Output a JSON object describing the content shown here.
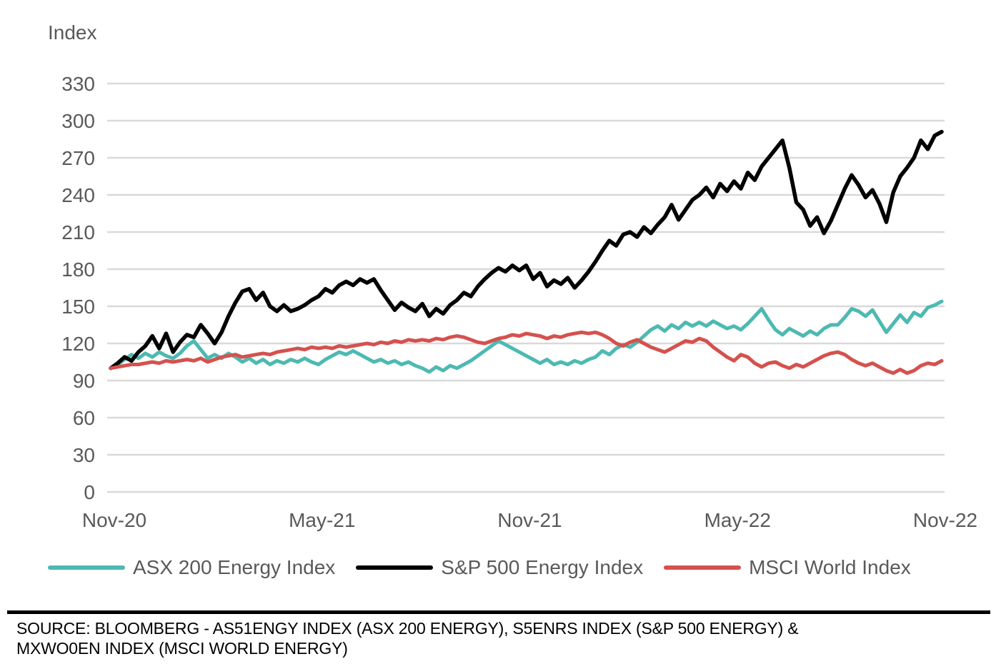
{
  "chart_data": {
    "type": "line",
    "axis_title": "Index",
    "y_axis": {
      "min": 0,
      "max": 330,
      "step": 30,
      "ticks": [
        0,
        30,
        60,
        90,
        120,
        150,
        180,
        210,
        240,
        270,
        300,
        330
      ]
    },
    "x_axis": {
      "labels": [
        "Nov-20",
        "May-21",
        "Nov-21",
        "May-22",
        "Nov-22"
      ],
      "label_positions_months": [
        0,
        6,
        12,
        18,
        24
      ],
      "range_months": [
        0,
        24
      ],
      "note": "series sampled every 0.2 month from Nov-20 to Nov-22"
    },
    "grid_color": "#D9D9D9",
    "axis_text_color": "#595959",
    "legend_position": "bottom",
    "series": [
      {
        "name": "ASX 200 Energy Index",
        "color": "#4DB9B2",
        "values": [
          100,
          103,
          107,
          111,
          108,
          112,
          109,
          113,
          110,
          108,
          112,
          118,
          122,
          115,
          108,
          111,
          108,
          112,
          109,
          105,
          108,
          104,
          107,
          103,
          106,
          104,
          107,
          105,
          108,
          105,
          103,
          107,
          110,
          113,
          111,
          114,
          111,
          108,
          105,
          107,
          104,
          106,
          103,
          105,
          102,
          100,
          97,
          101,
          98,
          102,
          100,
          103,
          106,
          110,
          114,
          118,
          122,
          119,
          116,
          113,
          110,
          107,
          104,
          107,
          103,
          105,
          103,
          106,
          104,
          107,
          109,
          114,
          111,
          116,
          119,
          117,
          121,
          126,
          131,
          134,
          130,
          135,
          132,
          137,
          134,
          137,
          134,
          138,
          135,
          132,
          134,
          131,
          136,
          142,
          148,
          139,
          131,
          127,
          132,
          129,
          126,
          130,
          127,
          132,
          135,
          135,
          141,
          148,
          146,
          142,
          147,
          138,
          129,
          136,
          143,
          137,
          145,
          142,
          149,
          151,
          154
        ]
      },
      {
        "name": "S&P 500 Energy Index",
        "color": "#000000",
        "values": [
          100,
          104,
          109,
          106,
          113,
          118,
          126,
          116,
          128,
          113,
          121,
          127,
          125,
          135,
          128,
          120,
          129,
          142,
          153,
          162,
          164,
          155,
          161,
          150,
          146,
          151,
          146,
          148,
          151,
          155,
          158,
          164,
          161,
          167,
          170,
          167,
          172,
          169,
          172,
          163,
          155,
          147,
          153,
          149,
          146,
          152,
          142,
          148,
          144,
          151,
          155,
          161,
          158,
          166,
          172,
          177,
          181,
          178,
          183,
          179,
          183,
          172,
          177,
          166,
          171,
          168,
          173,
          165,
          171,
          178,
          186,
          195,
          203,
          199,
          208,
          210,
          206,
          214,
          209,
          216,
          222,
          232,
          220,
          228,
          236,
          240,
          246,
          238,
          249,
          243,
          251,
          245,
          258,
          252,
          263,
          270,
          277,
          284,
          262,
          234,
          228,
          215,
          222,
          209,
          219,
          232,
          245,
          256,
          248,
          238,
          244,
          233,
          218,
          242,
          255,
          262,
          270,
          284,
          277,
          288,
          291
        ]
      },
      {
        "name": "MSCI World Index",
        "color": "#D5514E",
        "values": [
          100,
          101,
          102,
          103,
          103,
          104,
          105,
          104,
          106,
          105,
          106,
          107,
          106,
          108,
          105,
          107,
          109,
          110,
          111,
          109,
          110,
          111,
          112,
          111,
          113,
          114,
          115,
          116,
          115,
          117,
          116,
          117,
          116,
          118,
          117,
          118,
          119,
          120,
          119,
          121,
          120,
          122,
          121,
          123,
          122,
          123,
          122,
          124,
          123,
          125,
          126,
          125,
          123,
          121,
          120,
          122,
          124,
          125,
          127,
          126,
          128,
          127,
          126,
          124,
          126,
          125,
          127,
          128,
          129,
          128,
          129,
          127,
          124,
          120,
          118,
          121,
          123,
          120,
          117,
          115,
          113,
          116,
          119,
          122,
          121,
          124,
          122,
          117,
          113,
          109,
          106,
          111,
          109,
          104,
          101,
          104,
          105,
          102,
          100,
          103,
          101,
          104,
          107,
          110,
          112,
          113,
          111,
          107,
          104,
          102,
          104,
          101,
          98,
          96,
          99,
          96,
          98,
          102,
          104,
          103,
          106
        ]
      }
    ]
  },
  "legend": {
    "items": [
      {
        "label": "ASX 200 Energy Index"
      },
      {
        "label": "S&P 500 Energy Index"
      },
      {
        "label": "MSCI World Index"
      }
    ]
  },
  "source": {
    "line1": "SOURCE: BLOOMBERG - AS51ENGY INDEX (ASX 200 ENERGY), S5ENRS INDEX (S&P 500 ENERGY) &",
    "line2": "MXWO0EN INDEX (MSCI WORLD ENERGY)"
  }
}
